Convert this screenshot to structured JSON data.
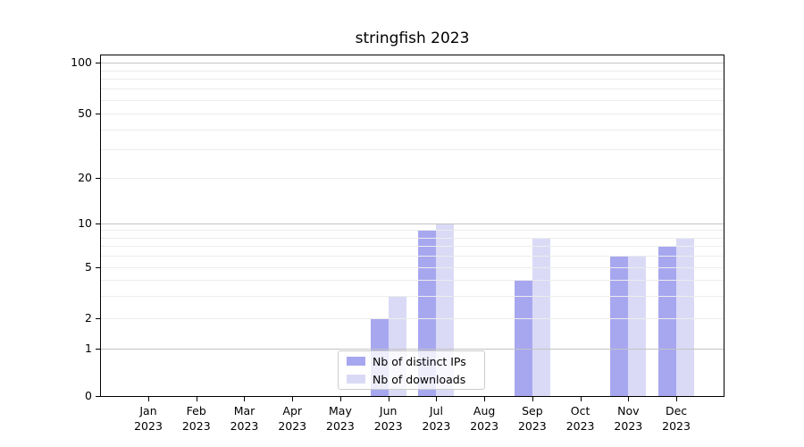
{
  "chart_data": {
    "type": "bar",
    "title": "stringfish 2023",
    "categories": [
      "Jan",
      "Feb",
      "Mar",
      "Apr",
      "May",
      "Jun",
      "Jul",
      "Aug",
      "Sep",
      "Oct",
      "Nov",
      "Dec"
    ],
    "x_sublabel": "2023",
    "series": [
      {
        "name": "Nb of distinct IPs",
        "color": "#a7a7f0",
        "values": [
          0,
          0,
          0,
          0,
          0,
          2,
          9,
          0,
          4,
          0,
          6,
          7
        ]
      },
      {
        "name": "Nb of downloads",
        "color": "#dadaf7",
        "values": [
          0,
          0,
          0,
          0,
          0,
          3,
          10,
          0,
          8,
          0,
          6,
          8
        ]
      }
    ],
    "yaxis": {
      "scale": "log-like (linear below 1)",
      "ticks": [
        0,
        1,
        2,
        5,
        10,
        20,
        50,
        100
      ],
      "tick_labels": [
        "0",
        "1",
        "2",
        "5",
        "10",
        "20",
        "50",
        "100"
      ],
      "ylim": [
        0,
        110
      ],
      "major_gridlines": [
        1,
        10,
        100
      ],
      "minor_gridlines": [
        2,
        3,
        4,
        5,
        6,
        7,
        8,
        9,
        20,
        30,
        40,
        50,
        60,
        70,
        80,
        90
      ]
    },
    "legend": {
      "position": "lower center"
    },
    "grid": true,
    "colors": {
      "spine": "#000000",
      "major_grid": "#c3c3c3",
      "minor_grid": "#ececec",
      "text": "#000000"
    }
  }
}
